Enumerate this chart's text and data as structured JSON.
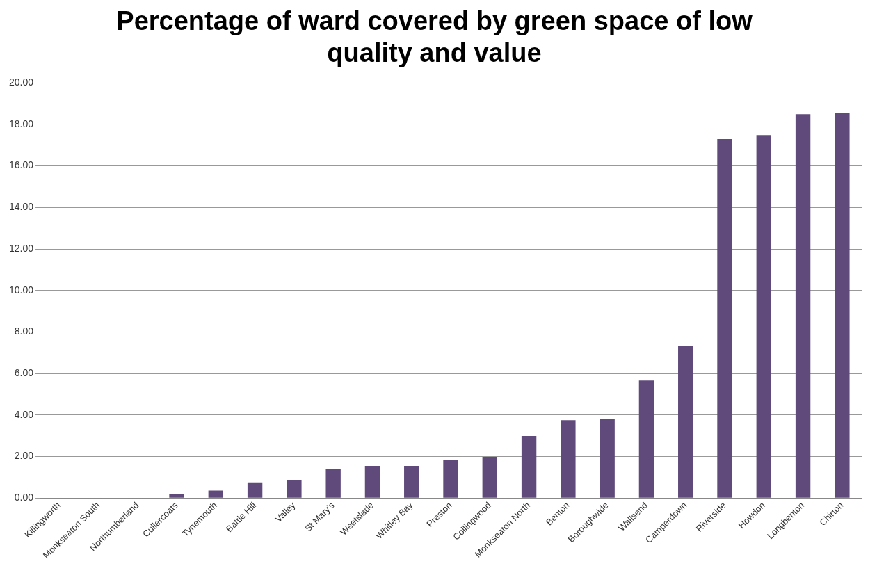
{
  "chart_data": {
    "type": "bar",
    "title": "Percentage of ward covered by green space of low quality and value",
    "categories": [
      "Killingworth",
      "Monkseaton South",
      "Northumberland",
      "Cullercoats",
      "Tynemouth",
      "Battle Hill",
      "Valley",
      "St Mary's",
      "Weetslade",
      "Whitley Bay",
      "Preston",
      "Collingwood",
      "Monkseaton North",
      "Benton",
      "Boroughwide",
      "Wallsend",
      "Camperdown",
      "Riverside",
      "Howdon",
      "Longbenton",
      "Chirton"
    ],
    "values": [
      0,
      0,
      0,
      0.2,
      0.36,
      0.76,
      0.88,
      1.39,
      1.55,
      1.55,
      1.83,
      1.99,
      2.99,
      3.75,
      3.82,
      5.66,
      7.33,
      17.29,
      17.49,
      18.49,
      18.57
    ],
    "color": "#604a7b",
    "ylim": [
      0,
      20
    ],
    "yticks": [
      {
        "value": 0,
        "label": "0.00"
      },
      {
        "value": 2,
        "label": "2.00"
      },
      {
        "value": 4,
        "label": "4.00"
      },
      {
        "value": 6,
        "label": "6.00"
      },
      {
        "value": 8,
        "label": "8.00"
      },
      {
        "value": 10,
        "label": "10.00"
      },
      {
        "value": 12,
        "label": "12.00"
      },
      {
        "value": 14,
        "label": "14.00"
      },
      {
        "value": 16,
        "label": "16.00"
      },
      {
        "value": 18,
        "label": "18.00"
      },
      {
        "value": 20,
        "label": "20.00"
      }
    ],
    "grid": "y",
    "legend": false
  }
}
